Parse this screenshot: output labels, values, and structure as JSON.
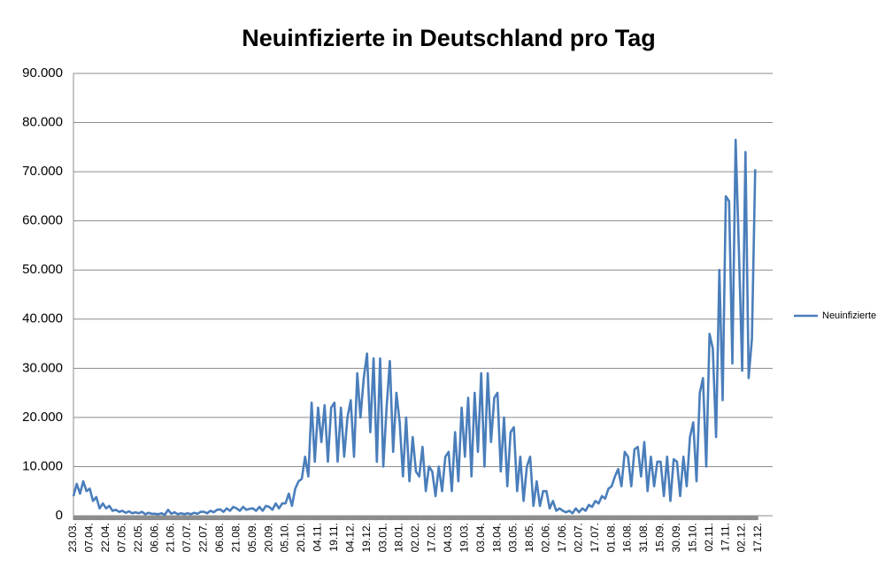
{
  "chart_data": {
    "type": "line",
    "title": "Neuinfizierte in Deutschland pro Tag",
    "categories": [
      "23.03.",
      null,
      null,
      null,
      null,
      "07.04.",
      null,
      null,
      null,
      null,
      "22.04.",
      null,
      null,
      null,
      null,
      "07.05.",
      null,
      null,
      null,
      null,
      "22.05.",
      null,
      null,
      null,
      null,
      "06.06.",
      null,
      null,
      null,
      null,
      "21.06.",
      null,
      null,
      null,
      null,
      "07.07.",
      null,
      null,
      null,
      null,
      "22.07.",
      null,
      null,
      null,
      null,
      "06.08.",
      null,
      null,
      null,
      null,
      "21.08.",
      null,
      null,
      null,
      null,
      "05.09.",
      null,
      null,
      null,
      null,
      "20.09.",
      null,
      null,
      null,
      null,
      "05.10.",
      null,
      null,
      null,
      null,
      "20.10.",
      null,
      null,
      null,
      null,
      "04.11.",
      null,
      null,
      null,
      null,
      "19.11.",
      null,
      null,
      null,
      null,
      "04.12.",
      null,
      null,
      null,
      null,
      "19.12.",
      null,
      null,
      null,
      null,
      "03.01.",
      null,
      null,
      null,
      null,
      "18.01.",
      null,
      null,
      null,
      null,
      "02.02.",
      null,
      null,
      null,
      null,
      "17.02.",
      null,
      null,
      null,
      null,
      "04.03.",
      null,
      null,
      null,
      null,
      "19.03.",
      null,
      null,
      null,
      null,
      "03.04.",
      null,
      null,
      null,
      null,
      "18.04.",
      null,
      null,
      null,
      null,
      "03.05.",
      null,
      null,
      null,
      null,
      "18.05.",
      null,
      null,
      null,
      null,
      "02.06.",
      null,
      null,
      null,
      null,
      "17.06.",
      null,
      null,
      null,
      null,
      "02.07.",
      null,
      null,
      null,
      null,
      "17.07.",
      null,
      null,
      null,
      null,
      "01.08.",
      null,
      null,
      null,
      null,
      "16.08.",
      null,
      null,
      null,
      null,
      "31.08.",
      null,
      null,
      null,
      null,
      "15.09.",
      null,
      null,
      null,
      null,
      "30.09.",
      null,
      null,
      null,
      null,
      "15.10.",
      null,
      null,
      null,
      null,
      "02.11.",
      null,
      null,
      null,
      null,
      "17.11.",
      null,
      null,
      null,
      null,
      "02.12.",
      null,
      null,
      null,
      null,
      "17.12."
    ],
    "series": [
      {
        "name": "Neuinfizierte",
        "color": "#4a7ebb",
        "values": [
          4000,
          6500,
          4500,
          7000,
          5000,
          5500,
          3000,
          3800,
          1500,
          2500,
          1500,
          2000,
          1000,
          1200,
          800,
          1000,
          600,
          900,
          500,
          700,
          500,
          800,
          300,
          600,
          400,
          400,
          300,
          500,
          200,
          1200,
          400,
          700,
          300,
          500,
          300,
          500,
          300,
          600,
          400,
          800,
          800,
          500,
          1000,
          700,
          1200,
          1300,
          800,
          1500,
          1000,
          1800,
          1500,
          1000,
          1800,
          1200,
          1400,
          1500,
          1000,
          1800,
          1000,
          2000,
          1800,
          1200,
          2500,
          1500,
          2500,
          2500,
          4500,
          2000,
          5500,
          7000,
          7500,
          12000,
          8000,
          23000,
          11000,
          22000,
          15000,
          22500,
          11000,
          22000,
          23000,
          11000,
          22000,
          12000,
          20000,
          23500,
          12000,
          29000,
          20000,
          28000,
          33000,
          17000,
          32000,
          11000,
          32000,
          10000,
          22000,
          31500,
          13000,
          25000,
          19000,
          8000,
          20000,
          7000,
          16000,
          9000,
          8000,
          14000,
          5000,
          10000,
          9000,
          4000,
          10000,
          5000,
          12000,
          13000,
          5000,
          17000,
          7000,
          22000,
          12000,
          24000,
          8000,
          25000,
          13000,
          29000,
          10000,
          29000,
          15000,
          24000,
          25000,
          9000,
          20000,
          6000,
          17000,
          18000,
          5000,
          12000,
          3000,
          10000,
          12000,
          2000,
          7000,
          2000,
          5000,
          5000,
          1500,
          3000,
          1000,
          1500,
          1000,
          700,
          1000,
          500,
          1500,
          700,
          1500,
          1000,
          2200,
          1800,
          3000,
          2500,
          4000,
          3500,
          5500,
          6000,
          8000,
          9500,
          6000,
          13000,
          12000,
          6000,
          13500,
          14000,
          8000,
          15000,
          5000,
          12000,
          6000,
          11000,
          11000,
          4000,
          12000,
          3000,
          11500,
          11000,
          4000,
          12000,
          6000,
          16000,
          19000,
          7000,
          25000,
          28000,
          10000,
          37000,
          34000,
          16000,
          50000,
          23500,
          65000,
          64000,
          31000,
          76500,
          54000,
          29500,
          74000,
          28000,
          36000,
          70500,
          null
        ]
      }
    ],
    "ylim": [
      0,
      90000
    ],
    "yticks": [
      {
        "value": 0,
        "label": "0"
      },
      {
        "value": 10000,
        "label": "10.000"
      },
      {
        "value": 20000,
        "label": "20.000"
      },
      {
        "value": 30000,
        "label": "30.000"
      },
      {
        "value": 40000,
        "label": "40.000"
      },
      {
        "value": 50000,
        "label": "50.000"
      },
      {
        "value": 60000,
        "label": "60.000"
      },
      {
        "value": 70000,
        "label": "70.000"
      },
      {
        "value": 80000,
        "label": "80.000"
      },
      {
        "value": 90000,
        "label": "90.000"
      }
    ],
    "grid": true,
    "legend": "right"
  }
}
